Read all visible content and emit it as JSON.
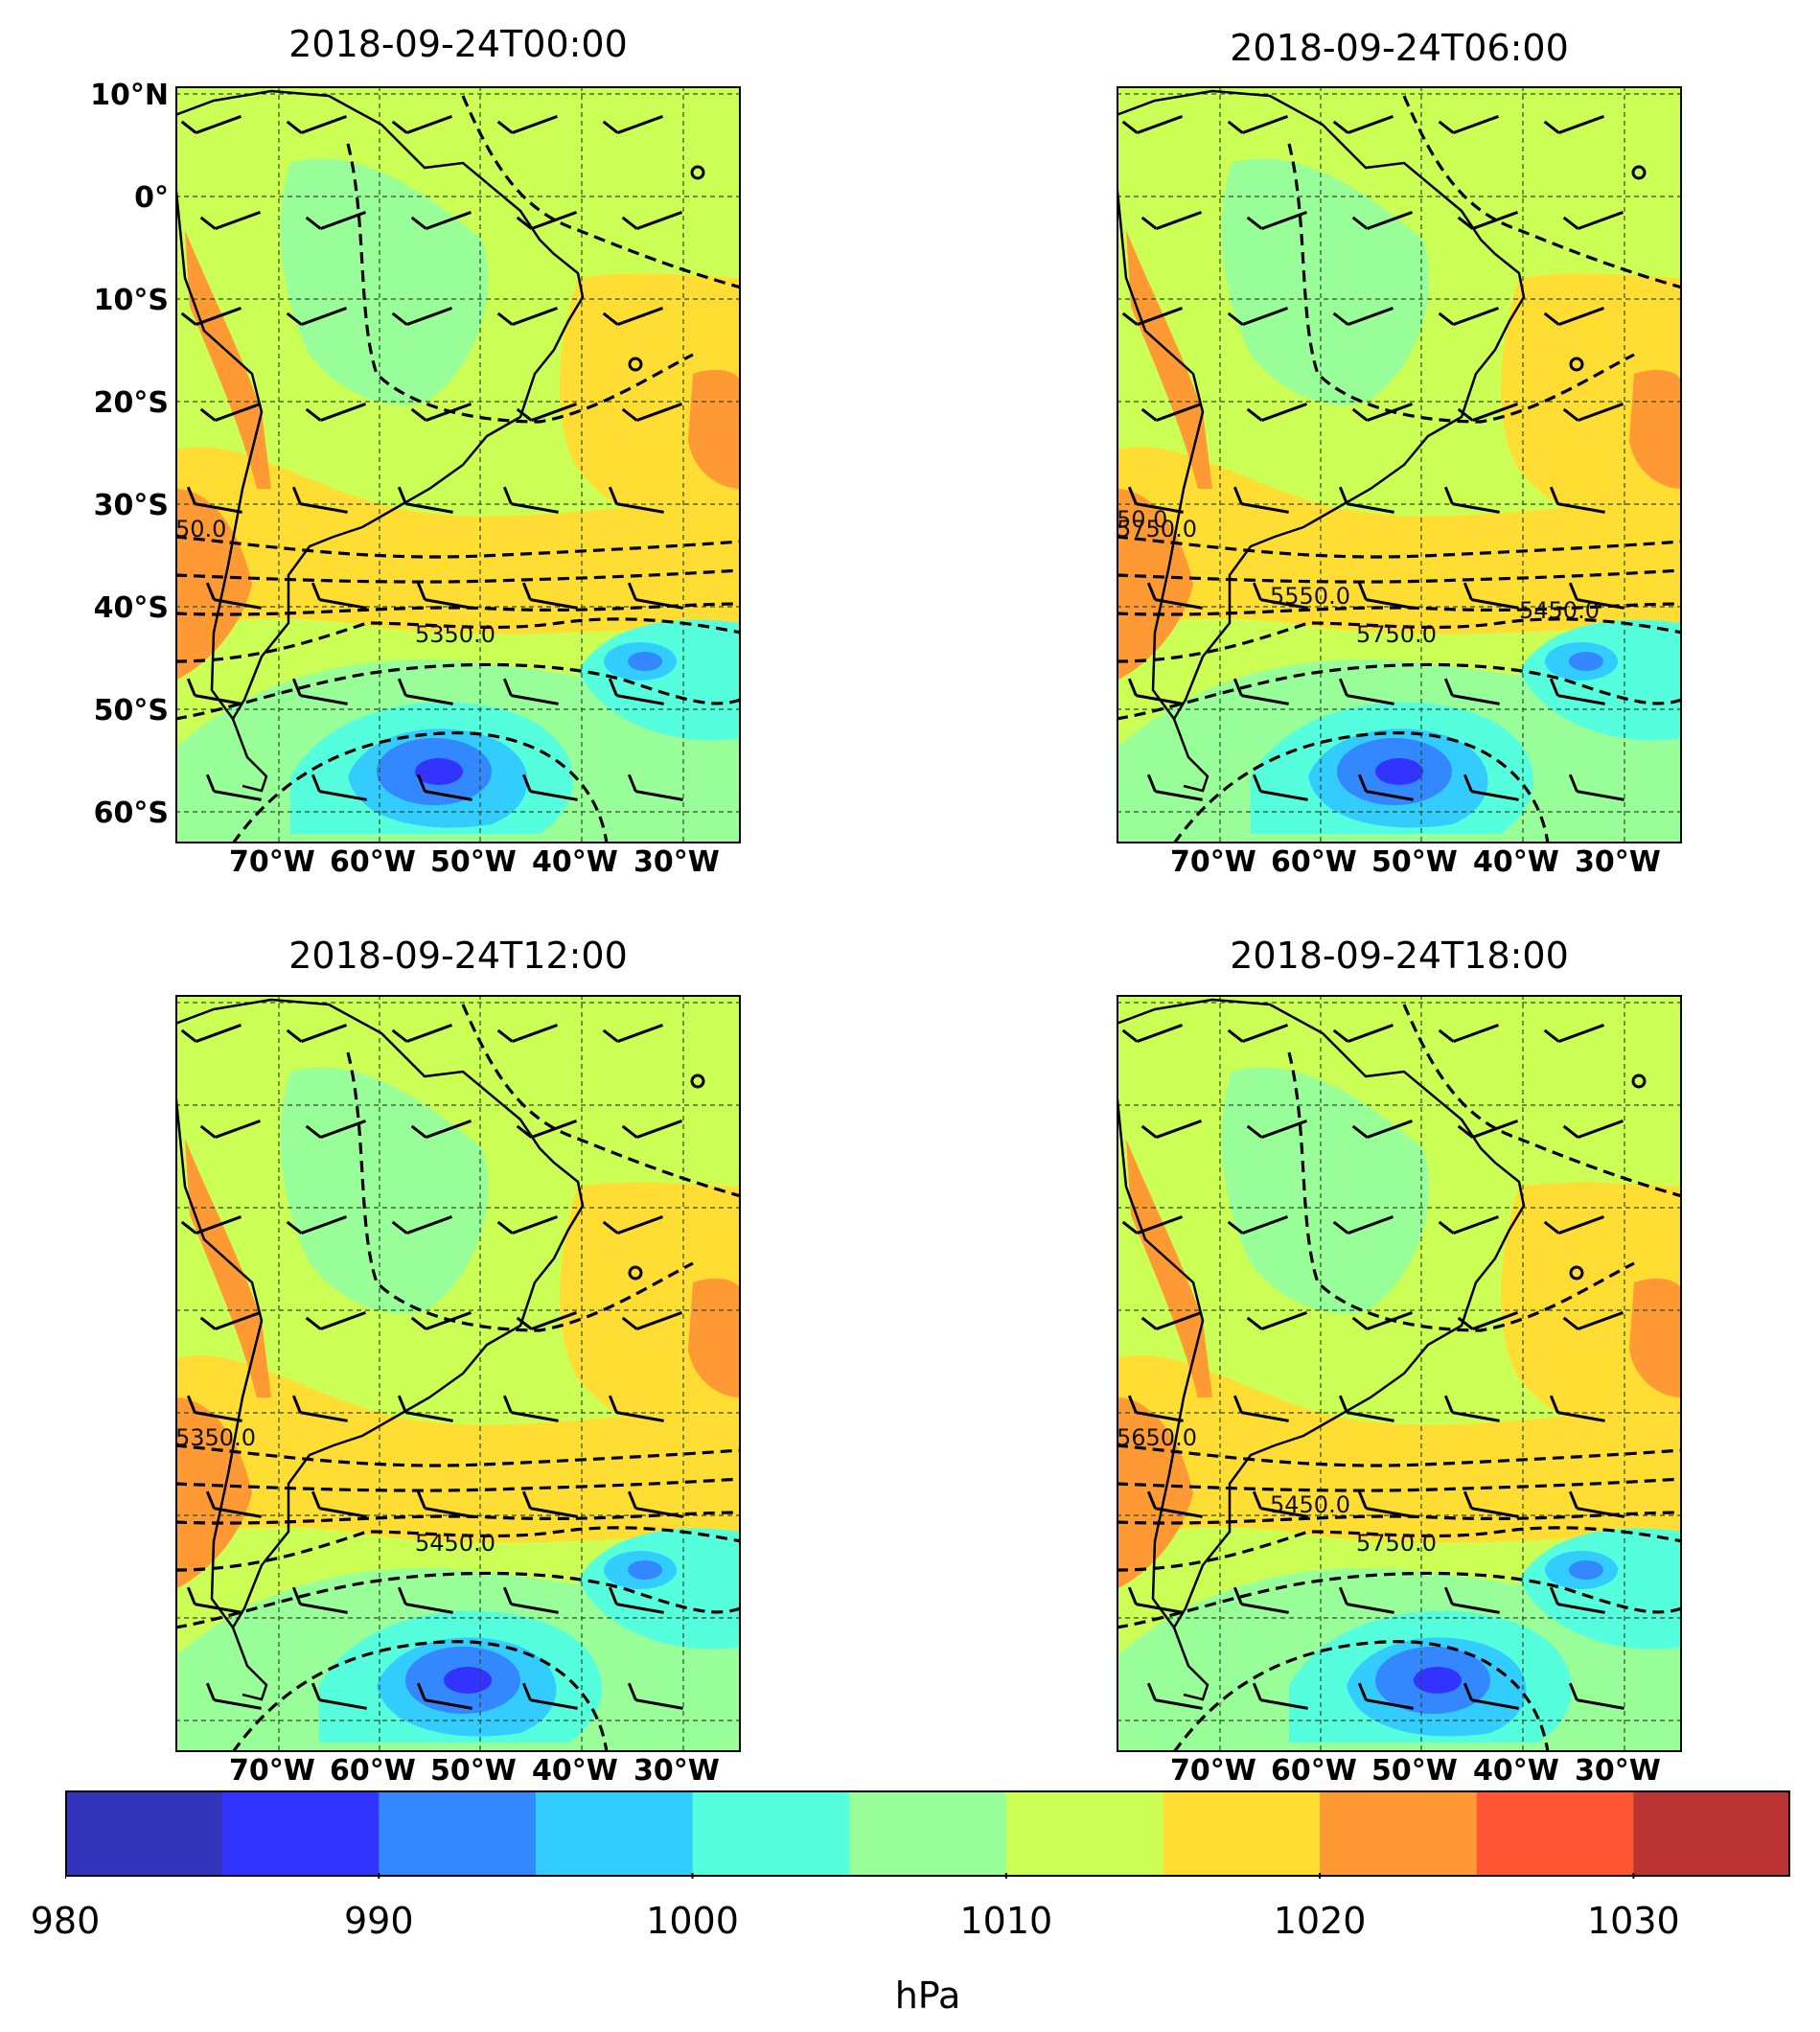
{
  "panels": [
    {
      "title": "2018-09-24T00:00",
      "contour_labels": [
        "5350.0",
        "50.0"
      ]
    },
    {
      "title": "2018-09-24T06:00",
      "contour_labels": [
        "5750.0",
        "5750.0",
        "5550.0",
        "5450.0",
        "50.0"
      ]
    },
    {
      "title": "2018-09-24T12:00",
      "contour_labels": [
        "5450.0",
        "5350.0"
      ]
    },
    {
      "title": "2018-09-24T18:00",
      "contour_labels": [
        "5750.0",
        "5650.0",
        "5450.0"
      ]
    }
  ],
  "lat_labels": [
    "10°N",
    "0°",
    "10°S",
    "20°S",
    "30°S",
    "40°S",
    "50°S",
    "60°S"
  ],
  "lon_labels": [
    "70°W",
    "60°W",
    "50°W",
    "40°W",
    "30°W"
  ],
  "colorbar": {
    "label": "hPa",
    "ticks": [
      "980",
      "990",
      "1000",
      "1010",
      "1020",
      "1030"
    ],
    "levels": [
      980,
      985,
      990,
      995,
      1000,
      1005,
      1010,
      1015,
      1020,
      1025,
      1030,
      1035
    ],
    "colors": [
      "#3333bb",
      "#3333ff",
      "#3388ff",
      "#33ccff",
      "#55ffdd",
      "#99ff99",
      "#ccff55",
      "#ffdd33",
      "#ff9933",
      "#ff5533",
      "#bb3333"
    ]
  }
}
